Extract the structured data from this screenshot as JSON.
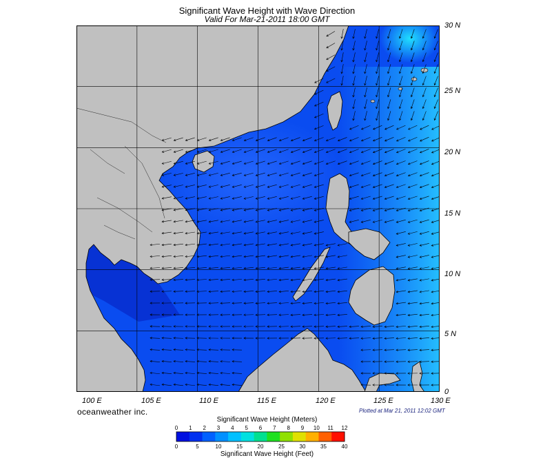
{
  "title": "Significant Wave Height with Wave Direction",
  "subtitle": "Valid For Mar-21-2011 18:00 GMT",
  "map": {
    "lat_labels": [
      "30 N",
      "25 N",
      "20 N",
      "15 N",
      "10 N",
      "5 N",
      "0"
    ],
    "lon_labels": [
      "100 E",
      "105 E",
      "110 E",
      "115 E",
      "120 E",
      "125 E",
      "130 E"
    ],
    "lat_range": [
      0,
      30
    ],
    "lon_range": [
      100,
      130
    ],
    "land_color": "#c0c0c0",
    "ocean_color": "#0a4cf0"
  },
  "brand": "oceanweather inc.",
  "plotted": "Plotted at Mar 21, 2011 12:02 GMT",
  "legend": {
    "meters_title": "Significant Wave Height (Meters)",
    "feet_title": "Significant Wave Height (Feet)",
    "meter_ticks": [
      "0",
      "1",
      "2",
      "3",
      "4",
      "5",
      "6",
      "7",
      "8",
      "9",
      "10",
      "11",
      "12"
    ],
    "feet_ticks": [
      "0",
      "5",
      "10",
      "15",
      "20",
      "25",
      "30",
      "35",
      "40"
    ],
    "colors": [
      "#0010e0",
      "#0030f0",
      "#0060ff",
      "#0090ff",
      "#00c0ff",
      "#00e0e0",
      "#00e090",
      "#20e020",
      "#90e000",
      "#e0e000",
      "#ffb000",
      "#ff6000",
      "#ff1000"
    ]
  }
}
